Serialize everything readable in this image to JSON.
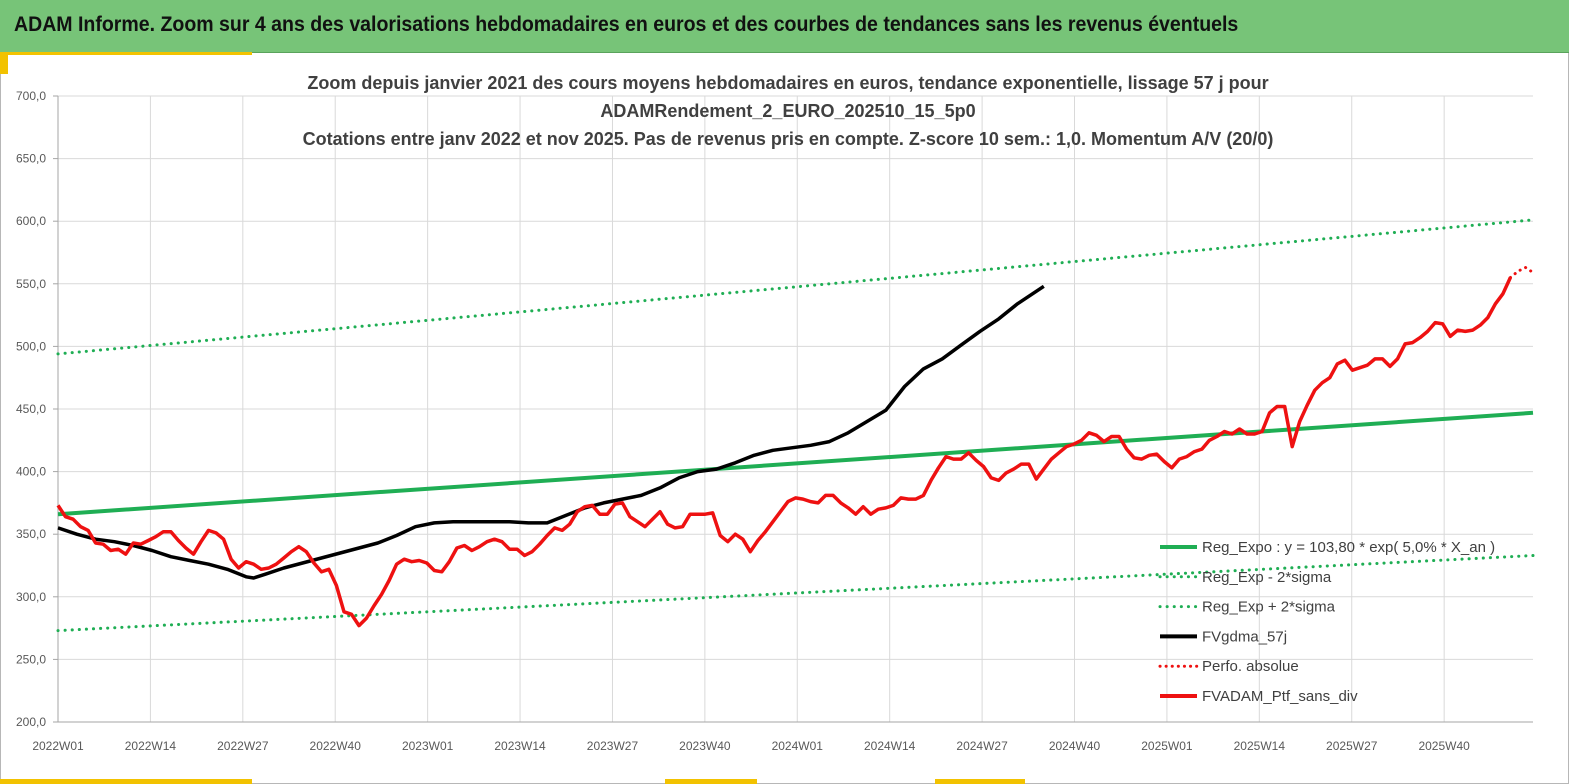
{
  "header": {
    "title": "ADAM Informe. Zoom sur 4 ans des valorisations hebdomadaires en euros et des courbes de tendances sans les revenus éventuels"
  },
  "colors": {
    "header_bg": "#77c478",
    "green": "#1fae54",
    "dotted_green": "#1fae54",
    "black": "#000000",
    "red": "#ee1111",
    "grid": "#d9d9d9"
  },
  "chart_data": {
    "type": "line",
    "title_lines": [
      "Zoom depuis janvier 2021 des cours moyens hebdomadaires  en euros, tendance exponentielle, lissage 57 j pour",
      "ADAMRendement_2_EURO_202510_15_5p0",
      "Cotations  entre janv 2022 et nov 2025. Pas de revenus pris en compte. Z-score 10 sem.: 1,0. Momentum A/V (20/0)"
    ],
    "ylim": [
      200,
      700
    ],
    "yticks": [
      "700,0",
      "650,0",
      "600,0",
      "550,0",
      "500,0",
      "450,0",
      "400,0",
      "350,0",
      "300,0",
      "250,0",
      "200,0"
    ],
    "xticks": [
      "2022W01",
      "2022W14",
      "2022W27",
      "2022W40",
      "2023W01",
      "2023W14",
      "2023W27",
      "2023W40",
      "2024W01",
      "2024W14",
      "2024W27",
      "2024W40",
      "2025W01",
      "2025W14",
      "2025W27",
      "2025W40"
    ],
    "x_range_weeks": [
      0,
      203
    ],
    "legend": [
      {
        "label": "Reg_Expo : y = 103,80 * exp( 5,0% *  X_an )",
        "style": "solid-green"
      },
      {
        "label": "Reg_Exp - 2*sigma",
        "style": "dotted-green"
      },
      {
        "label": "Reg_Exp + 2*sigma",
        "style": "dotted-green"
      },
      {
        "label": "FVgdma_57j",
        "style": "solid-black"
      },
      {
        "label": "Perfo. absolue",
        "style": "dotted-red"
      },
      {
        "label": "FVADAM_Ptf_sans_div",
        "style": "solid-red"
      }
    ],
    "series": [
      {
        "name": "Reg_Expo",
        "points": [
          [
            0,
            366
          ],
          [
            203,
            447
          ]
        ]
      },
      {
        "name": "Reg_Exp - 2*sigma",
        "points": [
          [
            0,
            273
          ],
          [
            203,
            333
          ]
        ]
      },
      {
        "name": "Reg_Exp + 2*sigma",
        "points": [
          [
            0,
            494
          ],
          [
            203,
            601
          ]
        ]
      },
      {
        "name": "FVgdma_57j",
        "points": [
          [
            0,
            355
          ],
          [
            5,
            350
          ],
          [
            10,
            346
          ],
          [
            15,
            344
          ],
          [
            20,
            341
          ],
          [
            25,
            337
          ],
          [
            30,
            332
          ],
          [
            35,
            329
          ],
          [
            40,
            326
          ],
          [
            45,
            322
          ],
          [
            50,
            316
          ],
          [
            52,
            315
          ],
          [
            55,
            318
          ],
          [
            60,
            323
          ],
          [
            65,
            327
          ],
          [
            70,
            331
          ],
          [
            75,
            335
          ],
          [
            80,
            339
          ],
          [
            85,
            343
          ],
          [
            90,
            349
          ],
          [
            95,
            356
          ],
          [
            100,
            359
          ],
          [
            105,
            360
          ],
          [
            110,
            360
          ],
          [
            115,
            360
          ],
          [
            120,
            360
          ],
          [
            125,
            359
          ],
          [
            130,
            359
          ],
          [
            135,
            365
          ],
          [
            140,
            371
          ],
          [
            145,
            375
          ],
          [
            150,
            378
          ],
          [
            155,
            381
          ],
          [
            160,
            387
          ],
          [
            165,
            395
          ],
          [
            170,
            400
          ],
          [
            175,
            402
          ],
          [
            180,
            407
          ],
          [
            185,
            413
          ],
          [
            190,
            417
          ],
          [
            195,
            419
          ],
          [
            200,
            421
          ],
          [
            205,
            424
          ],
          [
            210,
            431
          ],
          [
            215,
            440
          ],
          [
            220,
            449
          ],
          [
            225,
            468
          ],
          [
            230,
            482
          ],
          [
            235,
            490
          ],
          [
            240,
            501
          ],
          [
            245,
            512
          ],
          [
            250,
            522
          ],
          [
            255,
            534
          ],
          [
            262,
            548
          ]
        ]
      },
      {
        "name": "FVADAM_Ptf_sans_div",
        "points": [
          [
            0,
            373
          ],
          [
            2,
            364
          ],
          [
            4,
            362
          ],
          [
            6,
            356
          ],
          [
            8,
            353
          ],
          [
            10,
            343
          ],
          [
            12,
            342
          ],
          [
            14,
            337
          ],
          [
            16,
            338
          ],
          [
            18,
            334
          ],
          [
            20,
            343
          ],
          [
            22,
            342
          ],
          [
            24,
            345
          ],
          [
            26,
            348
          ],
          [
            28,
            352
          ],
          [
            30,
            352
          ],
          [
            32,
            345
          ],
          [
            34,
            339
          ],
          [
            36,
            334
          ],
          [
            38,
            344
          ],
          [
            40,
            353
          ],
          [
            42,
            351
          ],
          [
            44,
            346
          ],
          [
            46,
            330
          ],
          [
            48,
            323
          ],
          [
            50,
            328
          ],
          [
            52,
            326
          ],
          [
            54,
            322
          ],
          [
            56,
            323
          ],
          [
            58,
            326
          ],
          [
            60,
            331
          ],
          [
            62,
            336
          ],
          [
            64,
            340
          ],
          [
            66,
            336
          ],
          [
            68,
            327
          ],
          [
            70,
            320
          ],
          [
            72,
            322
          ],
          [
            74,
            309
          ],
          [
            76,
            288
          ],
          [
            78,
            286
          ],
          [
            80,
            277
          ],
          [
            82,
            283
          ],
          [
            84,
            293
          ],
          [
            86,
            302
          ],
          [
            88,
            313
          ],
          [
            90,
            326
          ],
          [
            92,
            330
          ],
          [
            94,
            328
          ],
          [
            96,
            329
          ],
          [
            98,
            327
          ],
          [
            100,
            321
          ],
          [
            102,
            320
          ],
          [
            104,
            328
          ],
          [
            106,
            339
          ],
          [
            108,
            341
          ],
          [
            110,
            337
          ],
          [
            112,
            340
          ],
          [
            114,
            344
          ],
          [
            116,
            346
          ],
          [
            118,
            344
          ],
          [
            120,
            338
          ],
          [
            122,
            338
          ],
          [
            124,
            333
          ],
          [
            126,
            336
          ],
          [
            128,
            342
          ],
          [
            130,
            349
          ],
          [
            132,
            355
          ],
          [
            134,
            353
          ],
          [
            136,
            358
          ],
          [
            138,
            368
          ],
          [
            140,
            372
          ],
          [
            142,
            373
          ],
          [
            144,
            366
          ],
          [
            146,
            366
          ],
          [
            148,
            374
          ],
          [
            150,
            375
          ],
          [
            152,
            364
          ],
          [
            154,
            360
          ],
          [
            156,
            356
          ],
          [
            158,
            362
          ],
          [
            160,
            368
          ],
          [
            162,
            358
          ],
          [
            164,
            355
          ],
          [
            166,
            356
          ],
          [
            168,
            366
          ],
          [
            170,
            366
          ],
          [
            172,
            366
          ],
          [
            174,
            367
          ],
          [
            176,
            349
          ],
          [
            178,
            344
          ],
          [
            180,
            350
          ],
          [
            182,
            346
          ],
          [
            184,
            336
          ],
          [
            186,
            345
          ],
          [
            188,
            352
          ],
          [
            190,
            360
          ],
          [
            192,
            368
          ],
          [
            194,
            376
          ],
          [
            196,
            379
          ],
          [
            198,
            378
          ],
          [
            200,
            376
          ],
          [
            202,
            375
          ],
          [
            204,
            381
          ],
          [
            206,
            381
          ],
          [
            208,
            375
          ],
          [
            210,
            371
          ],
          [
            212,
            366
          ],
          [
            214,
            372
          ],
          [
            216,
            366
          ],
          [
            218,
            370
          ],
          [
            220,
            371
          ],
          [
            222,
            373
          ],
          [
            224,
            379
          ],
          [
            226,
            378
          ],
          [
            228,
            378
          ],
          [
            230,
            381
          ],
          [
            232,
            393
          ],
          [
            234,
            403
          ],
          [
            236,
            412
          ],
          [
            238,
            410
          ],
          [
            240,
            410
          ],
          [
            242,
            415
          ],
          [
            244,
            409
          ],
          [
            246,
            404
          ],
          [
            248,
            395
          ],
          [
            250,
            393
          ],
          [
            252,
            399
          ],
          [
            254,
            402
          ],
          [
            256,
            406
          ],
          [
            258,
            406
          ],
          [
            260,
            394
          ],
          [
            262,
            402
          ],
          [
            264,
            410
          ],
          [
            266,
            415
          ],
          [
            268,
            420
          ],
          [
            270,
            422
          ],
          [
            272,
            425
          ],
          [
            274,
            431
          ],
          [
            276,
            429
          ],
          [
            278,
            424
          ],
          [
            280,
            428
          ],
          [
            282,
            428
          ],
          [
            284,
            418
          ],
          [
            286,
            411
          ],
          [
            288,
            410
          ],
          [
            290,
            413
          ],
          [
            292,
            414
          ],
          [
            294,
            408
          ],
          [
            296,
            403
          ],
          [
            298,
            410
          ],
          [
            300,
            412
          ],
          [
            302,
            416
          ],
          [
            304,
            418
          ],
          [
            306,
            425
          ],
          [
            308,
            428
          ],
          [
            310,
            432
          ],
          [
            312,
            430
          ],
          [
            314,
            434
          ],
          [
            316,
            430
          ],
          [
            318,
            430
          ],
          [
            320,
            432
          ],
          [
            322,
            447
          ],
          [
            324,
            452
          ],
          [
            326,
            452
          ],
          [
            328,
            420
          ],
          [
            330,
            440
          ],
          [
            332,
            453
          ],
          [
            334,
            465
          ],
          [
            336,
            471
          ],
          [
            338,
            475
          ],
          [
            340,
            486
          ],
          [
            342,
            489
          ],
          [
            344,
            481
          ],
          [
            346,
            483
          ],
          [
            348,
            485
          ],
          [
            350,
            490
          ],
          [
            352,
            490
          ],
          [
            354,
            484
          ],
          [
            356,
            490
          ],
          [
            358,
            502
          ],
          [
            360,
            503
          ],
          [
            362,
            507
          ],
          [
            364,
            512
          ],
          [
            366,
            519
          ],
          [
            368,
            518
          ],
          [
            370,
            508
          ],
          [
            372,
            513
          ],
          [
            374,
            512
          ],
          [
            376,
            513
          ],
          [
            378,
            517
          ],
          [
            380,
            523
          ],
          [
            382,
            534
          ],
          [
            384,
            542
          ],
          [
            386,
            555
          ]
        ]
      },
      {
        "name": "Perfo. absolue",
        "points": [
          [
            386,
            555
          ],
          [
            388,
            560
          ],
          [
            390,
            563
          ],
          [
            392,
            559
          ]
        ]
      }
    ]
  }
}
